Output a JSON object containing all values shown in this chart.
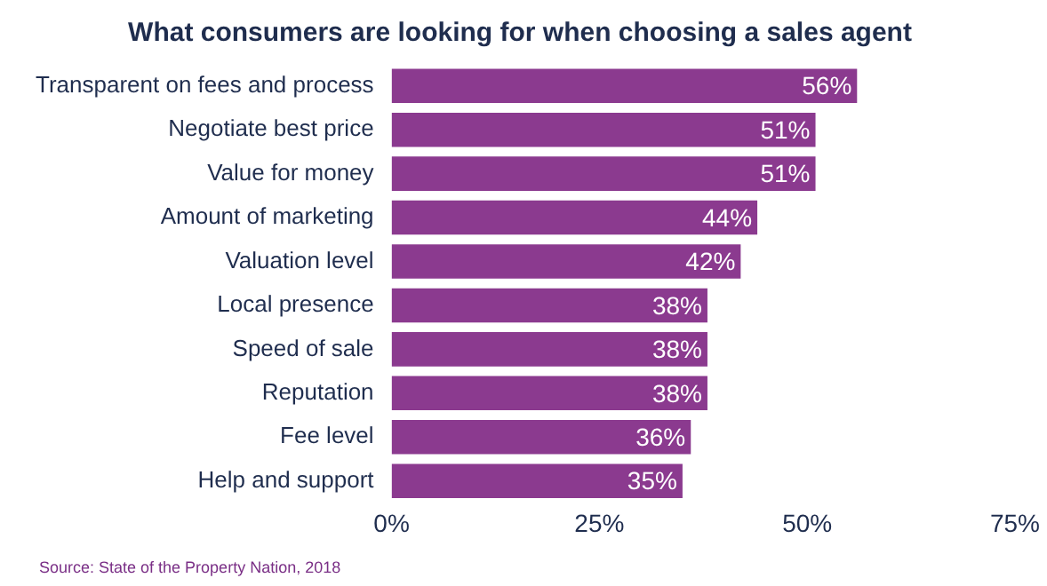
{
  "chart_data": {
    "type": "bar",
    "orientation": "horizontal",
    "title": "What consumers are looking for when choosing a sales agent",
    "categories": [
      "Transparent on fees and process",
      "Negotiate best price",
      "Value for money",
      "Amount of marketing",
      "Valuation level",
      "Local presence",
      "Speed of sale",
      "Reputation",
      "Fee level",
      "Help and support"
    ],
    "values": [
      56,
      51,
      51,
      44,
      42,
      38,
      38,
      38,
      36,
      35
    ],
    "value_labels": [
      "56%",
      "51%",
      "51%",
      "44%",
      "42%",
      "38%",
      "38%",
      "38%",
      "36%",
      "35%"
    ],
    "color": "#8b3a8f",
    "xlim": [
      0,
      75
    ],
    "xticks": [
      {
        "value": 0,
        "label": "0%"
      },
      {
        "value": 25,
        "label": "25%"
      },
      {
        "value": 50,
        "label": "50%"
      },
      {
        "value": 75,
        "label": "75%"
      }
    ],
    "grid": false,
    "legend": false,
    "annotations": [
      "Source: State of the Property Nation, 2018"
    ]
  }
}
